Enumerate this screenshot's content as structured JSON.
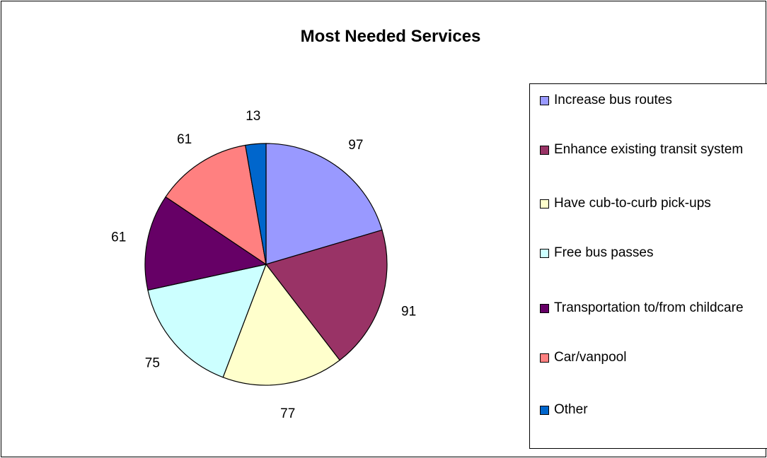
{
  "chart_data": {
    "type": "pie",
    "title": "Most Needed Services",
    "legend_position": "right",
    "categories": [
      "Increase bus routes",
      "Enhance existing transit system",
      "Have cub-to-curb pick-ups",
      "Free bus passes",
      "Transportation to/from childcare",
      "Car/vanpool",
      "Other"
    ],
    "values": [
      97,
      91,
      77,
      75,
      61,
      61,
      13
    ],
    "labels": [
      "97",
      "91",
      "77",
      "75",
      "61",
      "61",
      "13"
    ],
    "colors": [
      "#9999ff",
      "#993366",
      "#ffffcc",
      "#ccffff",
      "#660066",
      "#ff8080",
      "#0066cc"
    ]
  }
}
